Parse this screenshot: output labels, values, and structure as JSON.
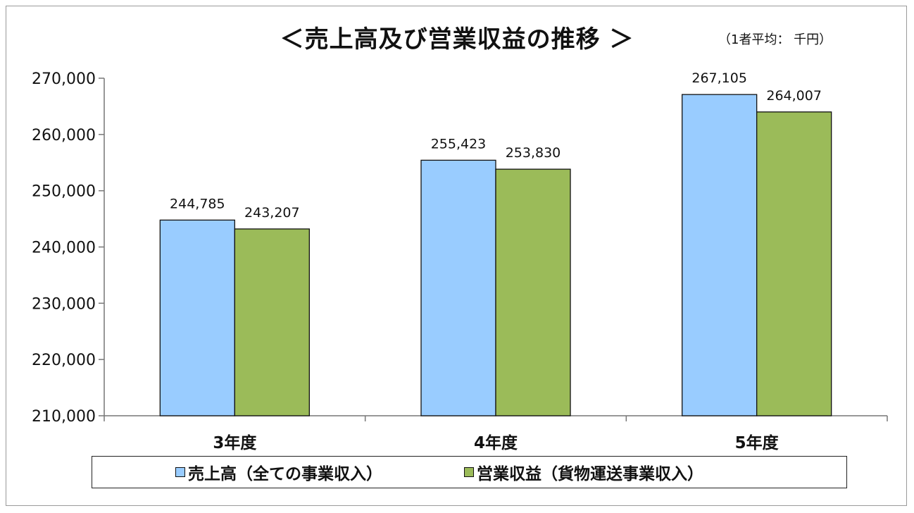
{
  "chart_data": {
    "type": "bar",
    "title": "＜売上高及び営業収益の推移 ＞",
    "unit_note": "（1者平均： 千円）",
    "categories": [
      "3年度",
      "4年度",
      "5年度"
    ],
    "series": [
      {
        "name": "売上高（全ての事業収入）",
        "color": "#99ccff",
        "values": [
          244785,
          255423,
          267105
        ],
        "labels": [
          "244,785",
          "255,423",
          "267,105"
        ]
      },
      {
        "name": "営業収益（貨物運送事業収入）",
        "color": "#9bbb59",
        "values": [
          243207,
          253830,
          264007
        ],
        "labels": [
          "243,207",
          "253,830",
          "264,007"
        ]
      }
    ],
    "ylim": [
      210000,
      270000
    ],
    "yticks": [
      210000,
      220000,
      230000,
      240000,
      250000,
      260000,
      270000
    ],
    "ytick_labels": [
      "210,000",
      "220,000",
      "230,000",
      "240,000",
      "250,000",
      "260,000",
      "270,000"
    ],
    "legend_position": "bottom",
    "grid": false
  }
}
